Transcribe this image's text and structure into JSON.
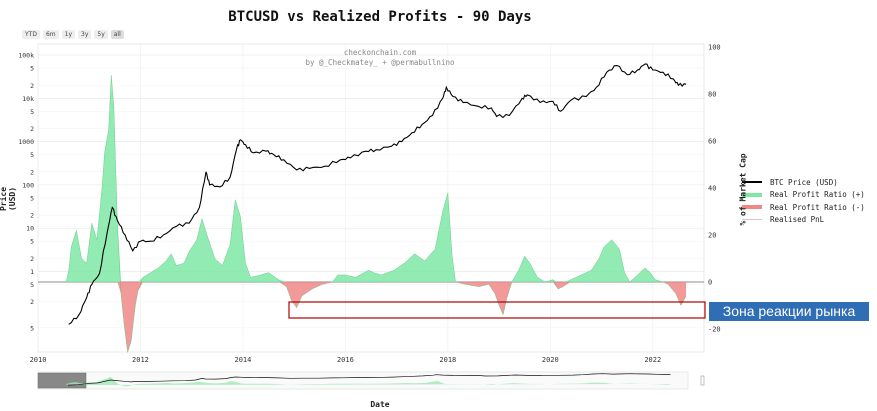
{
  "title": "BTCUSD vs Realized Profits - 90 Days",
  "credits": [
    "checkonchain.com",
    "by @_Checkmatey_ + @permabullnino"
  ],
  "range_buttons": [
    "YTD",
    "6m",
    "1y",
    "3y",
    "5y",
    "all"
  ],
  "annotation": "Зона реакции рынка",
  "colors": {
    "price": "#000000",
    "profit_pos": "#7ee8a4",
    "profit_neg": "#f08888",
    "box": "#b00000",
    "annot_bg": "#2f6db5"
  },
  "chart_data": {
    "type": "area",
    "xlabel": "Date",
    "ylabel": "Price (USD)",
    "y2label": "% of Market Cap",
    "x_ticks": [
      "2010",
      "2012",
      "2014",
      "2016",
      "2018",
      "2020",
      "2022"
    ],
    "y_ticks_log": [
      "5",
      "2",
      "1",
      "5",
      "2",
      "10",
      "5",
      "2",
      "100",
      "5",
      "2",
      "1000",
      "5",
      "2",
      "10k",
      "5",
      "2",
      "100k"
    ],
    "y2_ticks": [
      "100",
      "80",
      "60",
      "40",
      "20",
      "0",
      "-20"
    ],
    "y2lim": [
      -27,
      100
    ],
    "legend": [
      "BTC Price (USD)",
      "Real Profit Ratio (+)",
      "Real Profit Ratio (-)",
      "Realised PnL"
    ],
    "price_series": [
      [
        2010.6,
        0.06
      ],
      [
        2010.8,
        0.1
      ],
      [
        2010.95,
        0.25
      ],
      [
        2011.05,
        0.5
      ],
      [
        2011.2,
        0.9
      ],
      [
        2011.35,
        8
      ],
      [
        2011.45,
        30
      ],
      [
        2011.55,
        15
      ],
      [
        2011.7,
        7
      ],
      [
        2011.85,
        3
      ],
      [
        2012.0,
        5
      ],
      [
        2012.2,
        5
      ],
      [
        2012.45,
        7
      ],
      [
        2012.7,
        11
      ],
      [
        2012.95,
        13
      ],
      [
        2013.15,
        30
      ],
      [
        2013.28,
        200
      ],
      [
        2013.35,
        100
      ],
      [
        2013.55,
        90
      ],
      [
        2013.75,
        150
      ],
      [
        2013.88,
        700
      ],
      [
        2013.95,
        1100
      ],
      [
        2014.05,
        850
      ],
      [
        2014.2,
        550
      ],
      [
        2014.45,
        600
      ],
      [
        2014.6,
        500
      ],
      [
        2014.8,
        380
      ],
      [
        2015.05,
        220
      ],
      [
        2015.3,
        240
      ],
      [
        2015.6,
        270
      ],
      [
        2015.9,
        380
      ],
      [
        2016.1,
        420
      ],
      [
        2016.4,
        600
      ],
      [
        2016.6,
        650
      ],
      [
        2016.9,
        780
      ],
      [
        2017.1,
        1000
      ],
      [
        2017.3,
        1600
      ],
      [
        2017.5,
        2500
      ],
      [
        2017.7,
        4000
      ],
      [
        2017.9,
        10000
      ],
      [
        2017.97,
        18000
      ],
      [
        2018.1,
        11000
      ],
      [
        2018.3,
        8000
      ],
      [
        2018.6,
        6500
      ],
      [
        2018.85,
        6000
      ],
      [
        2018.95,
        3800
      ],
      [
        2019.2,
        4000
      ],
      [
        2019.45,
        10000
      ],
      [
        2019.55,
        12000
      ],
      [
        2019.8,
        8000
      ],
      [
        2020.05,
        8500
      ],
      [
        2020.2,
        5000
      ],
      [
        2020.4,
        9000
      ],
      [
        2020.7,
        11000
      ],
      [
        2020.9,
        18000
      ],
      [
        2021.1,
        40000
      ],
      [
        2021.3,
        57000
      ],
      [
        2021.5,
        35000
      ],
      [
        2021.7,
        45000
      ],
      [
        2021.85,
        62000
      ],
      [
        2022.0,
        45000
      ],
      [
        2022.2,
        40000
      ],
      [
        2022.4,
        28000
      ],
      [
        2022.5,
        20000
      ],
      [
        2022.65,
        21000
      ]
    ],
    "profit_ratio_series": [
      [
        2010.55,
        0
      ],
      [
        2010.6,
        5
      ],
      [
        2010.65,
        15
      ],
      [
        2010.75,
        22
      ],
      [
        2010.85,
        10
      ],
      [
        2010.95,
        8
      ],
      [
        2011.05,
        25
      ],
      [
        2011.15,
        18
      ],
      [
        2011.25,
        40
      ],
      [
        2011.3,
        55
      ],
      [
        2011.38,
        65
      ],
      [
        2011.43,
        88
      ],
      [
        2011.48,
        75
      ],
      [
        2011.55,
        25
      ],
      [
        2011.62,
        -5
      ],
      [
        2011.68,
        -18
      ],
      [
        2011.75,
        -30
      ],
      [
        2011.82,
        -25
      ],
      [
        2011.9,
        -10
      ],
      [
        2011.95,
        -4
      ],
      [
        2012.05,
        2
      ],
      [
        2012.2,
        4
      ],
      [
        2012.35,
        6
      ],
      [
        2012.5,
        9
      ],
      [
        2012.6,
        12
      ],
      [
        2012.7,
        7
      ],
      [
        2012.85,
        8
      ],
      [
        2012.95,
        13
      ],
      [
        2013.1,
        18
      ],
      [
        2013.2,
        27
      ],
      [
        2013.3,
        20
      ],
      [
        2013.45,
        10
      ],
      [
        2013.6,
        7
      ],
      [
        2013.75,
        16
      ],
      [
        2013.85,
        35
      ],
      [
        2013.95,
        28
      ],
      [
        2014.05,
        8
      ],
      [
        2014.15,
        2
      ],
      [
        2014.35,
        3
      ],
      [
        2014.5,
        4
      ],
      [
        2014.7,
        1
      ],
      [
        2014.85,
        -2
      ],
      [
        2014.95,
        -8
      ],
      [
        2015.05,
        -11
      ],
      [
        2015.15,
        -6
      ],
      [
        2015.35,
        -3
      ],
      [
        2015.55,
        -1
      ],
      [
        2015.75,
        0
      ],
      [
        2015.85,
        3
      ],
      [
        2016.0,
        3
      ],
      [
        2016.2,
        2
      ],
      [
        2016.45,
        5
      ],
      [
        2016.55,
        4
      ],
      [
        2016.7,
        3
      ],
      [
        2016.95,
        5
      ],
      [
        2017.15,
        8
      ],
      [
        2017.35,
        12
      ],
      [
        2017.55,
        9
      ],
      [
        2017.75,
        14
      ],
      [
        2017.9,
        30
      ],
      [
        2018.0,
        38
      ],
      [
        2018.08,
        12
      ],
      [
        2018.15,
        0
      ],
      [
        2018.35,
        -1
      ],
      [
        2018.6,
        -2
      ],
      [
        2018.8,
        -1
      ],
      [
        2018.92,
        -5
      ],
      [
        2019.0,
        -10
      ],
      [
        2019.08,
        -14
      ],
      [
        2019.15,
        -7
      ],
      [
        2019.25,
        0
      ],
      [
        2019.38,
        5
      ],
      [
        2019.5,
        11
      ],
      [
        2019.6,
        8
      ],
      [
        2019.75,
        2
      ],
      [
        2019.9,
        0
      ],
      [
        2020.05,
        1
      ],
      [
        2020.15,
        -3
      ],
      [
        2020.25,
        -2
      ],
      [
        2020.4,
        1
      ],
      [
        2020.6,
        3
      ],
      [
        2020.8,
        5
      ],
      [
        2020.95,
        10
      ],
      [
        2021.05,
        15
      ],
      [
        2021.2,
        18
      ],
      [
        2021.35,
        14
      ],
      [
        2021.45,
        4
      ],
      [
        2021.55,
        0
      ],
      [
        2021.7,
        3
      ],
      [
        2021.85,
        6
      ],
      [
        2021.95,
        4
      ],
      [
        2022.05,
        1
      ],
      [
        2022.2,
        0
      ],
      [
        2022.3,
        -1
      ],
      [
        2022.45,
        -5
      ],
      [
        2022.55,
        -10
      ],
      [
        2022.6,
        -8
      ],
      [
        2022.65,
        -6
      ]
    ]
  }
}
